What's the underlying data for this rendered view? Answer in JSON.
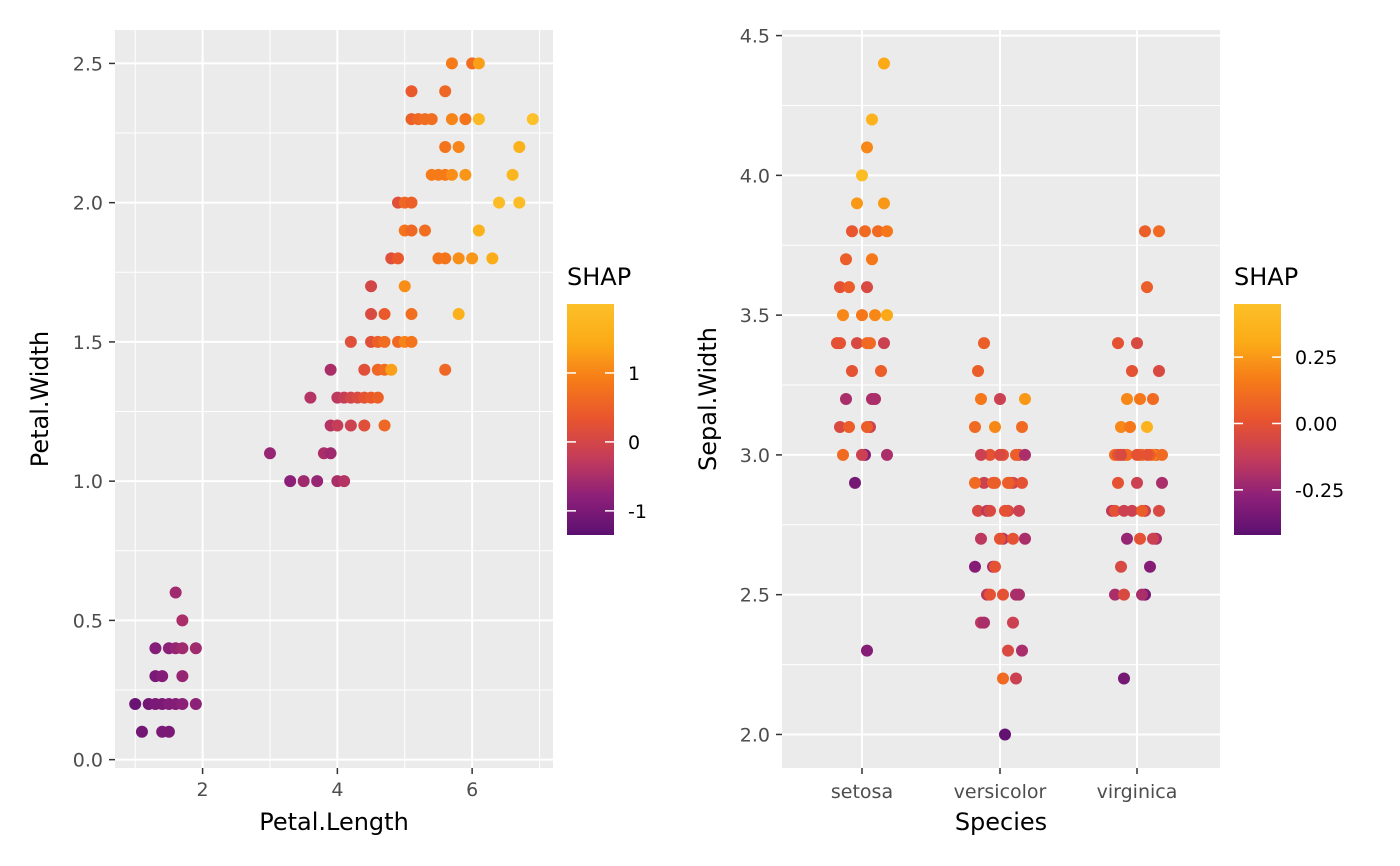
{
  "colors": {
    "panel_bg": "#ebebeb",
    "grid": "#ffffff",
    "tick_text": "#4d4d4d",
    "scale": [
      "#5c1070",
      "#8d2079",
      "#c43c5a",
      "#e8542f",
      "#f67a18",
      "#fbab17",
      "#fcc028"
    ]
  },
  "chart_data": [
    {
      "type": "scatter",
      "title": "",
      "xlabel": "Petal.Length",
      "ylabel": "Petal.Width",
      "xlim": [
        0.7,
        7.2
      ],
      "ylim": [
        -0.03,
        2.62
      ],
      "xticks": [
        2,
        4,
        6
      ],
      "xtick_labels": [
        "2",
        "4",
        "6"
      ],
      "yticks": [
        0.0,
        0.5,
        1.0,
        1.5,
        2.0,
        2.5
      ],
      "ytick_labels": [
        "0.0",
        "0.5",
        "1.0",
        "1.5",
        "2.0",
        "2.5"
      ],
      "grid": true,
      "legend": {
        "title": "SHAP",
        "position": "right",
        "range": [
          -1.35,
          2.0
        ],
        "ticks": [
          1,
          0,
          -1
        ],
        "tick_labels": [
          "1",
          "0",
          "-1"
        ]
      },
      "points": [
        [
          1.0,
          0.2,
          -1.2
        ],
        [
          1.1,
          0.1,
          -1.1
        ],
        [
          1.2,
          0.2,
          -1.1
        ],
        [
          1.3,
          0.2,
          -1.0
        ],
        [
          1.3,
          0.3,
          -1.0
        ],
        [
          1.3,
          0.4,
          -0.9
        ],
        [
          1.4,
          0.1,
          -1.0
        ],
        [
          1.4,
          0.2,
          -1.0
        ],
        [
          1.4,
          0.3,
          -0.9
        ],
        [
          1.5,
          0.1,
          -1.0
        ],
        [
          1.5,
          0.2,
          -0.9
        ],
        [
          1.5,
          0.4,
          -0.8
        ],
        [
          1.6,
          0.2,
          -0.9
        ],
        [
          1.6,
          0.4,
          -0.7
        ],
        [
          1.6,
          0.6,
          -0.6
        ],
        [
          1.7,
          0.2,
          -0.8
        ],
        [
          1.7,
          0.3,
          -0.7
        ],
        [
          1.7,
          0.4,
          -0.6
        ],
        [
          1.7,
          0.5,
          -0.5
        ],
        [
          1.9,
          0.2,
          -0.8
        ],
        [
          1.9,
          0.4,
          -0.6
        ],
        [
          3.0,
          1.1,
          -0.7
        ],
        [
          3.3,
          1.0,
          -0.8
        ],
        [
          3.5,
          1.0,
          -0.6
        ],
        [
          3.6,
          1.3,
          -0.4
        ],
        [
          3.7,
          1.0,
          -0.7
        ],
        [
          3.8,
          1.1,
          -0.5
        ],
        [
          3.9,
          1.1,
          -0.6
        ],
        [
          3.9,
          1.2,
          -0.4
        ],
        [
          3.9,
          1.4,
          -0.5
        ],
        [
          4.0,
          1.0,
          -0.5
        ],
        [
          4.0,
          1.2,
          -0.2
        ],
        [
          4.0,
          1.3,
          -0.3
        ],
        [
          4.1,
          1.0,
          -0.4
        ],
        [
          4.1,
          1.3,
          -0.2
        ],
        [
          4.2,
          1.2,
          -0.1
        ],
        [
          4.2,
          1.3,
          0.0
        ],
        [
          4.2,
          1.5,
          0.2
        ],
        [
          4.3,
          1.3,
          0.1
        ],
        [
          4.4,
          1.2,
          0.2
        ],
        [
          4.4,
          1.3,
          0.3
        ],
        [
          4.4,
          1.4,
          0.2
        ],
        [
          4.5,
          1.3,
          0.4
        ],
        [
          4.5,
          1.5,
          0.2
        ],
        [
          4.5,
          1.6,
          0.1
        ],
        [
          4.5,
          1.7,
          0.0
        ],
        [
          4.6,
          1.3,
          0.5
        ],
        [
          4.6,
          1.4,
          0.6
        ],
        [
          4.6,
          1.5,
          0.5
        ],
        [
          4.7,
          1.2,
          0.6
        ],
        [
          4.7,
          1.4,
          0.7
        ],
        [
          4.7,
          1.5,
          0.7
        ],
        [
          4.7,
          1.6,
          0.4
        ],
        [
          4.8,
          1.4,
          1.3
        ],
        [
          4.8,
          1.8,
          0.2
        ],
        [
          4.9,
          1.5,
          0.6
        ],
        [
          4.9,
          1.8,
          0.4
        ],
        [
          4.9,
          2.0,
          0.2
        ],
        [
          5.0,
          1.5,
          1.0
        ],
        [
          5.0,
          1.7,
          1.1
        ],
        [
          5.0,
          1.9,
          0.8
        ],
        [
          5.0,
          2.0,
          0.6
        ],
        [
          5.1,
          1.5,
          0.8
        ],
        [
          5.1,
          1.6,
          0.7
        ],
        [
          5.1,
          1.9,
          0.6
        ],
        [
          5.1,
          2.0,
          0.5
        ],
        [
          5.1,
          2.3,
          0.5
        ],
        [
          5.1,
          2.4,
          0.4
        ],
        [
          5.2,
          2.3,
          0.6
        ],
        [
          5.3,
          1.9,
          0.7
        ],
        [
          5.3,
          2.3,
          0.7
        ],
        [
          5.4,
          2.1,
          0.9
        ],
        [
          5.4,
          2.3,
          0.7
        ],
        [
          5.5,
          1.8,
          0.8
        ],
        [
          5.5,
          2.1,
          0.9
        ],
        [
          5.6,
          1.4,
          0.6
        ],
        [
          5.6,
          1.8,
          0.8
        ],
        [
          5.6,
          2.1,
          0.9
        ],
        [
          5.6,
          2.2,
          0.8
        ],
        [
          5.6,
          2.4,
          0.6
        ],
        [
          5.7,
          2.1,
          1.1
        ],
        [
          5.7,
          2.3,
          1.0
        ],
        [
          5.7,
          2.5,
          0.9
        ],
        [
          5.8,
          1.6,
          1.6
        ],
        [
          5.8,
          1.8,
          1.1
        ],
        [
          5.8,
          2.2,
          1.0
        ],
        [
          5.9,
          2.1,
          1.2
        ],
        [
          5.9,
          2.3,
          0.8
        ],
        [
          6.0,
          1.8,
          1.2
        ],
        [
          6.0,
          2.5,
          0.7
        ],
        [
          6.1,
          1.9,
          1.6
        ],
        [
          6.1,
          2.3,
          1.8
        ],
        [
          6.1,
          2.5,
          1.3
        ],
        [
          6.3,
          1.8,
          1.5
        ],
        [
          6.4,
          2.0,
          1.9
        ],
        [
          6.6,
          2.1,
          1.7
        ],
        [
          6.7,
          2.0,
          1.9
        ],
        [
          6.7,
          2.2,
          1.6
        ],
        [
          6.9,
          2.3,
          2.0
        ]
      ]
    },
    {
      "type": "scatter",
      "title": "",
      "xlabel": "Species",
      "ylabel": "Sepal.Width",
      "categories": [
        "setosa",
        "versicolor",
        "virginica"
      ],
      "ylim": [
        1.88,
        4.52
      ],
      "yticks": [
        2.0,
        2.5,
        3.0,
        3.5,
        4.0,
        4.5
      ],
      "ytick_labels": [
        "2.0",
        "2.5",
        "3.0",
        "3.5",
        "4.0",
        "4.5"
      ],
      "grid": true,
      "legend": {
        "title": "SHAP",
        "position": "right",
        "range": [
          -0.42,
          0.45
        ],
        "ticks": [
          0.25,
          0.0,
          -0.25
        ],
        "tick_labels": [
          "0.25",
          "0.00",
          "-0.25"
        ]
      },
      "points": [
        [
          "setosa",
          3.8,
          0.02
        ],
        [
          "setosa",
          3.7,
          0.05
        ],
        [
          "setosa",
          3.4,
          0.0
        ],
        [
          "setosa",
          3.1,
          -0.1
        ],
        [
          "setosa",
          3.2,
          -0.2
        ],
        [
          "setosa",
          3.5,
          0.3
        ],
        [
          "setosa",
          4.2,
          0.35
        ],
        [
          "setosa",
          3.4,
          -0.05
        ],
        [
          "setosa",
          3.2,
          -0.2
        ],
        [
          "setosa",
          3.5,
          0.15
        ],
        [
          "setosa",
          3.4,
          -0.1
        ],
        [
          "setosa",
          3.1,
          -0.05
        ],
        [
          "setosa",
          2.9,
          -0.35
        ],
        [
          "setosa",
          3.0,
          -0.3
        ],
        [
          "setosa",
          2.3,
          -0.3
        ],
        [
          "setosa",
          3.5,
          0.2
        ],
        [
          "setosa",
          4.0,
          0.42
        ],
        [
          "setosa",
          3.3,
          0.05
        ],
        [
          "setosa",
          3.0,
          -0.2
        ],
        [
          "setosa",
          3.6,
          0.0
        ],
        [
          "setosa",
          3.4,
          0.1
        ],
        [
          "setosa",
          3.2,
          -0.2
        ],
        [
          "setosa",
          3.8,
          0.1
        ],
        [
          "setosa",
          4.1,
          0.2
        ],
        [
          "setosa",
          3.6,
          -0.05
        ],
        [
          "setosa",
          3.9,
          0.25
        ],
        [
          "setosa",
          4.4,
          0.3
        ],
        [
          "setosa",
          3.9,
          0.25
        ],
        [
          "setosa",
          3.0,
          -0.1
        ],
        [
          "setosa",
          3.8,
          0.1
        ],
        [
          "setosa",
          3.1,
          0.05
        ],
        [
          "setosa",
          3.4,
          0.0
        ],
        [
          "setosa",
          3.6,
          0.05
        ],
        [
          "setosa",
          3.0,
          0.1
        ],
        [
          "setosa",
          3.4,
          0.1
        ],
        [
          "setosa",
          3.8,
          0.15
        ],
        [
          "setosa",
          3.5,
          0.2
        ],
        [
          "setosa",
          3.7,
          0.15
        ],
        [
          "setosa",
          3.1,
          0.05
        ],
        [
          "setosa",
          3.3,
          0.0
        ],
        [
          "versicolor",
          2.4,
          -0.15
        ],
        [
          "versicolor",
          2.9,
          -0.1
        ],
        [
          "versicolor",
          2.8,
          -0.05
        ],
        [
          "versicolor",
          2.5,
          -0.15
        ],
        [
          "versicolor",
          2.6,
          -0.2
        ],
        [
          "versicolor",
          2.9,
          -0.1
        ],
        [
          "versicolor",
          3.2,
          0.25
        ],
        [
          "versicolor",
          3.0,
          -0.05
        ],
        [
          "versicolor",
          2.6,
          -0.3
        ],
        [
          "versicolor",
          2.7,
          -0.15
        ],
        [
          "versicolor",
          2.5,
          -0.2
        ],
        [
          "versicolor",
          2.9,
          0.0
        ],
        [
          "versicolor",
          2.7,
          -0.2
        ],
        [
          "versicolor",
          3.4,
          0.05
        ],
        [
          "versicolor",
          3.2,
          -0.1
        ],
        [
          "versicolor",
          2.3,
          -0.2
        ],
        [
          "versicolor",
          2.8,
          -0.05
        ],
        [
          "versicolor",
          3.0,
          0.0
        ],
        [
          "versicolor",
          2.2,
          -0.1
        ],
        [
          "versicolor",
          2.9,
          0.05
        ],
        [
          "versicolor",
          3.2,
          0.15
        ],
        [
          "versicolor",
          2.7,
          0.0
        ],
        [
          "versicolor",
          2.4,
          -0.1
        ],
        [
          "versicolor",
          2.9,
          0.1
        ],
        [
          "versicolor",
          2.5,
          0.0
        ],
        [
          "versicolor",
          2.8,
          0.0
        ],
        [
          "versicolor",
          2.0,
          -0.4
        ],
        [
          "versicolor",
          3.0,
          0.05
        ],
        [
          "versicolor",
          2.4,
          -0.2
        ],
        [
          "versicolor",
          2.6,
          0.0
        ],
        [
          "versicolor",
          2.8,
          -0.15
        ],
        [
          "versicolor",
          3.0,
          0.0
        ],
        [
          "versicolor",
          2.7,
          -0.15
        ],
        [
          "versicolor",
          2.9,
          0.05
        ],
        [
          "versicolor",
          3.1,
          0.1
        ],
        [
          "versicolor",
          2.3,
          -0.05
        ],
        [
          "versicolor",
          2.8,
          -0.1
        ],
        [
          "versicolor",
          3.0,
          -0.2
        ],
        [
          "versicolor",
          2.5,
          -0.2
        ],
        [
          "versicolor",
          3.1,
          0.2
        ],
        [
          "versicolor",
          3.0,
          -0.05
        ],
        [
          "versicolor",
          2.8,
          -0.05
        ],
        [
          "versicolor",
          2.9,
          0.0
        ],
        [
          "versicolor",
          2.2,
          0.1
        ],
        [
          "versicolor",
          3.1,
          0.1
        ],
        [
          "versicolor",
          2.7,
          0.0
        ],
        [
          "versicolor",
          3.3,
          0.05
        ],
        [
          "versicolor",
          2.9,
          0.05
        ],
        [
          "versicolor",
          3.0,
          -0.1
        ],
        [
          "versicolor",
          2.5,
          0.0
        ],
        [
          "virginica",
          3.2,
          0.2
        ],
        [
          "virginica",
          3.8,
          0.1
        ],
        [
          "virginica",
          3.0,
          0.1
        ],
        [
          "virginica",
          3.6,
          0.05
        ],
        [
          "virginica",
          2.5,
          -0.35
        ],
        [
          "virginica",
          2.8,
          -0.15
        ],
        [
          "virginica",
          2.9,
          -0.2
        ],
        [
          "virginica",
          3.0,
          0.05
        ],
        [
          "virginica",
          3.2,
          0.1
        ],
        [
          "virginica",
          3.1,
          0.2
        ],
        [
          "virginica",
          3.4,
          -0.05
        ],
        [
          "virginica",
          2.7,
          -0.2
        ],
        [
          "virginica",
          2.5,
          -0.2
        ],
        [
          "virginica",
          2.2,
          -0.35
        ],
        [
          "virginica",
          2.6,
          -0.3
        ],
        [
          "virginica",
          2.8,
          -0.1
        ],
        [
          "virginica",
          3.0,
          -0.05
        ],
        [
          "virginica",
          2.7,
          -0.25
        ],
        [
          "virginica",
          3.2,
          0.15
        ],
        [
          "virginica",
          3.0,
          0.0
        ],
        [
          "virginica",
          3.1,
          0.35
        ],
        [
          "virginica",
          3.0,
          0.1
        ],
        [
          "virginica",
          2.8,
          -0.05
        ],
        [
          "virginica",
          3.3,
          0.0
        ],
        [
          "virginica",
          3.0,
          0.2
        ],
        [
          "virginica",
          2.8,
          -0.1
        ],
        [
          "virginica",
          2.5,
          -0.2
        ],
        [
          "virginica",
          3.4,
          0.0
        ],
        [
          "virginica",
          2.8,
          0.0
        ],
        [
          "virginica",
          3.0,
          0.1
        ],
        [
          "virginica",
          2.9,
          -0.1
        ],
        [
          "virginica",
          3.1,
          0.15
        ],
        [
          "virginica",
          3.3,
          -0.05
        ],
        [
          "virginica",
          2.8,
          0.05
        ],
        [
          "virginica",
          3.0,
          0.1
        ],
        [
          "virginica",
          3.8,
          0.05
        ],
        [
          "virginica",
          2.6,
          -0.05
        ],
        [
          "virginica",
          3.0,
          0.0
        ],
        [
          "virginica",
          2.7,
          -0.1
        ],
        [
          "virginica",
          2.8,
          -0.1
        ],
        [
          "virginica",
          3.0,
          0.0
        ],
        [
          "virginica",
          3.0,
          0.05
        ],
        [
          "virginica",
          3.0,
          -0.05
        ],
        [
          "virginica",
          2.5,
          -0.05
        ],
        [
          "virginica",
          3.0,
          0.0
        ],
        [
          "virginica",
          2.9,
          0.0
        ],
        [
          "virginica",
          2.7,
          0.0
        ]
      ]
    }
  ]
}
